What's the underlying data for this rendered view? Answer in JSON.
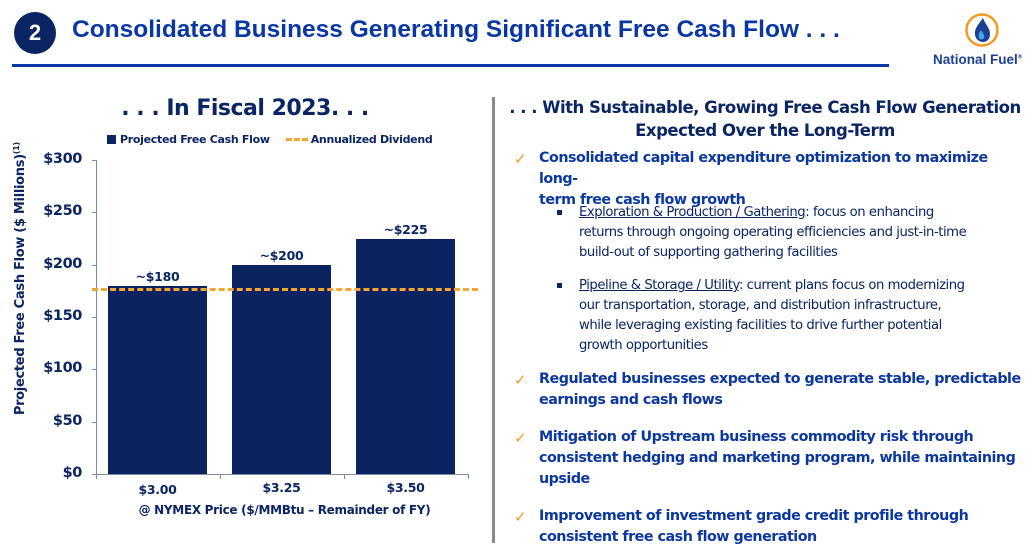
{
  "header": {
    "slide_number": "2",
    "title": "Consolidated Business Generating Significant Free Cash Flow . . .",
    "logo_text": "National Fuel",
    "logo_mark": "®",
    "logo_icon": "flame-drop-icon",
    "colors": {
      "title": "#0a37a4",
      "badge": "#0b2463",
      "accent_orange": "#f5a533"
    }
  },
  "left": {
    "heading": ". . . In Fiscal 2023. . ."
  },
  "chart_data": {
    "type": "bar",
    "title": ". . . In Fiscal 2023. . .",
    "categories": [
      "$3.00",
      "$3.25",
      "$3.50"
    ],
    "series": [
      {
        "name": "Projected Free Cash Flow",
        "values": [
          180,
          200,
          225
        ],
        "labels": [
          "~$180",
          "~$200",
          "~$225"
        ],
        "color": "#0b2260"
      }
    ],
    "reference_lines": [
      {
        "name": "Annualized Dividend",
        "value": 177,
        "style": "dashed",
        "color": "#f5a533"
      }
    ],
    "legend": [
      "Projected Free Cash Flow",
      "Annualized Dividend"
    ],
    "legend_position": "top",
    "xlabel": "@ NYMEX Price ($/MMBtu – Remainder of FY)",
    "ylabel": "Projected Free Cash Flow ($ Millions)",
    "ylabel_superscript": "(1)",
    "yticks": [
      "$0",
      "$50",
      "$100",
      "$150",
      "$200",
      "$250",
      "$300"
    ],
    "ylim": [
      0,
      300
    ],
    "grid": false
  },
  "right": {
    "heading_line1": ". . . With Sustainable, Growing Free Cash Flow Generation",
    "heading_line2": "Expected Over the Long-Term",
    "check_icon": "checkmark-icon",
    "points": [
      {
        "text_line1": "Consolidated capital expenditure optimization to maximize long-",
        "text_line2": "term free cash flow growth"
      },
      {
        "text_line1": "Regulated businesses expected to generate stable, predictable",
        "text_line2": "earnings and cash flows"
      },
      {
        "text_line1": "Mitigation of Upstream business commodity risk through",
        "text_line2": "consistent hedging and marketing program, while maintaining",
        "text_line3": "upside"
      },
      {
        "text_line1": "Improvement of investment grade credit profile through",
        "text_line2": "consistent free cash flow generation"
      }
    ],
    "subpoints": [
      {
        "label": "Exploration & Production / Gathering",
        "text_line1": ": focus on enhancing",
        "text_line2": "returns through ongoing operating efficiencies and just-in-time",
        "text_line3": "build-out of supporting gathering facilities"
      },
      {
        "label": "Pipeline & Storage / Utility",
        "text_line1": ": current plans focus on modernizing",
        "text_line2": "our transportation, storage, and distribution infrastructure,",
        "text_line3": "while leveraging existing facilities to drive further potential",
        "text_line4": "growth opportunities"
      }
    ]
  }
}
